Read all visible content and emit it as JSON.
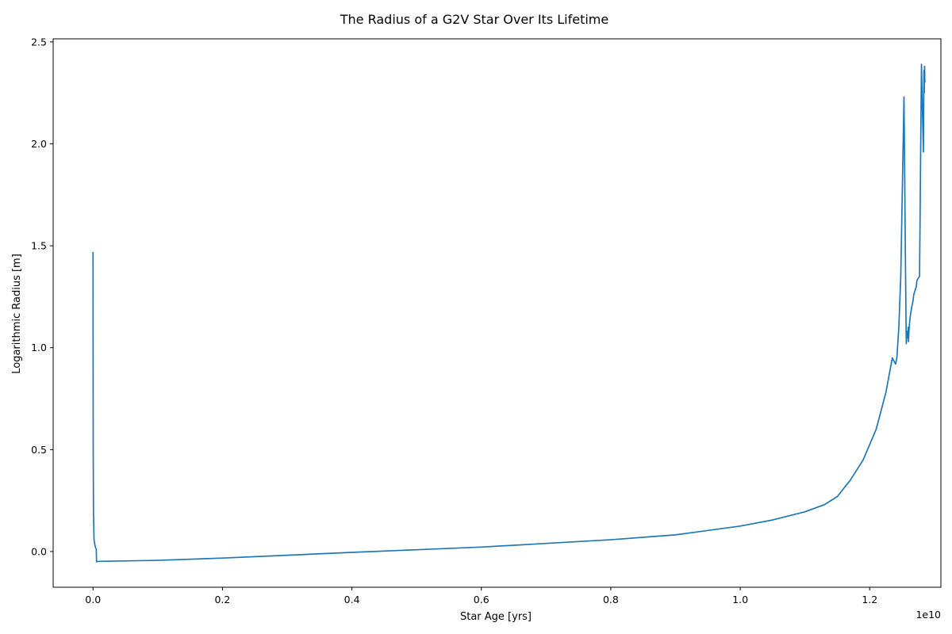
{
  "chart_data": {
    "type": "line",
    "title": "The Radius of a G2V Star Over Its Lifetime",
    "xlabel": "Star Age [yrs]",
    "ylabel": "Logarithmic Radius [m]",
    "x_offset_label": "1e10",
    "xlim": [
      -0.0616,
      1.31
    ],
    "ylim": [
      -0.175,
      2.515
    ],
    "x_ticks": [
      0.0,
      0.2,
      0.4,
      0.6,
      0.8,
      1.0,
      1.2
    ],
    "x_tick_labels": [
      "0.0",
      "0.2",
      "0.4",
      "0.6",
      "0.8",
      "1.0",
      "1.2"
    ],
    "y_ticks": [
      0.0,
      0.5,
      1.0,
      1.5,
      2.0,
      2.5
    ],
    "y_tick_labels": [
      "0.0",
      "0.5",
      "1.0",
      "1.5",
      "2.0",
      "2.5"
    ],
    "grid": false,
    "line_color": "#1f77b4",
    "x": [
      0.0,
      0.0001,
      0.0003,
      0.0007,
      0.0015,
      0.003,
      0.005,
      0.0055,
      0.01,
      0.1,
      0.2,
      0.3,
      0.4,
      0.5,
      0.6,
      0.7,
      0.8,
      0.9,
      1.0,
      1.05,
      1.1,
      1.13,
      1.15,
      1.17,
      1.19,
      1.21,
      1.225,
      1.235,
      1.24,
      1.242,
      1.245,
      1.248,
      1.25,
      1.253,
      1.255,
      1.2565,
      1.258,
      1.259,
      1.2595,
      1.2599,
      1.2605,
      1.261,
      1.2625,
      1.265,
      1.267,
      1.268,
      1.271,
      1.272,
      1.273,
      1.277,
      1.28,
      1.282,
      1.283,
      1.2838,
      1.2843,
      1.2848,
      1.2852
    ],
    "y": [
      1.47,
      1.1,
      0.5,
      0.2,
      0.06,
      0.03,
      0.01,
      -0.05,
      -0.048,
      -0.043,
      -0.032,
      -0.018,
      -0.004,
      0.009,
      0.022,
      0.04,
      0.058,
      0.082,
      0.125,
      0.155,
      0.195,
      0.23,
      0.27,
      0.35,
      0.45,
      0.6,
      0.78,
      0.95,
      0.92,
      0.95,
      1.1,
      1.35,
      1.7,
      2.23,
      1.5,
      1.02,
      1.08,
      1.05,
      1.1,
      1.03,
      1.07,
      1.1,
      1.15,
      1.2,
      1.23,
      1.26,
      1.29,
      1.3,
      1.33,
      1.35,
      2.39,
      2.1,
      1.96,
      2.36,
      2.25,
      2.38,
      2.3
    ]
  }
}
